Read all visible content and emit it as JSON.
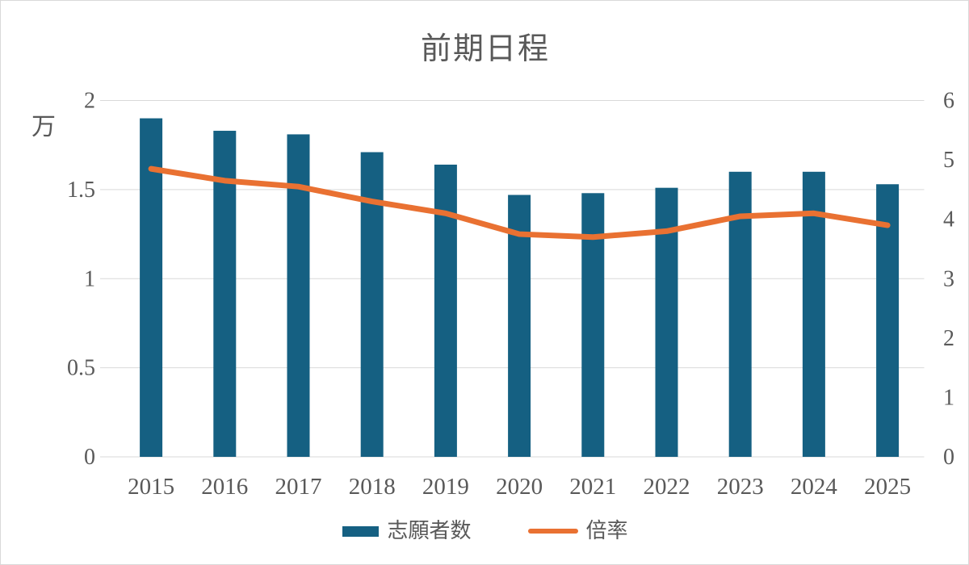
{
  "title": "前期日程",
  "colors": {
    "bar": "#156082",
    "line": "#E97132",
    "text": "#595959",
    "gridline": "#D9D9D9",
    "background": "#FFFFFF",
    "border": "#D9D9D9"
  },
  "legend": {
    "items": [
      {
        "label": "志願者数",
        "swatch": "bar-swatch"
      },
      {
        "label": "倍率",
        "swatch": "line-swatch"
      }
    ]
  },
  "chart_data": {
    "type": "combo",
    "title": "前期日程",
    "categories": [
      "2015",
      "2016",
      "2017",
      "2018",
      "2019",
      "2020",
      "2021",
      "2022",
      "2023",
      "2024",
      "2025"
    ],
    "series": [
      {
        "name": "志願者数",
        "type": "bar",
        "axis": "left",
        "color": "#156082",
        "values": [
          1.9,
          1.83,
          1.81,
          1.71,
          1.64,
          1.47,
          1.48,
          1.51,
          1.6,
          1.6,
          1.53
        ]
      },
      {
        "name": "倍率",
        "type": "line",
        "axis": "right",
        "color": "#E97132",
        "values": [
          4.85,
          4.65,
          4.55,
          4.3,
          4.1,
          3.75,
          3.7,
          3.8,
          4.05,
          4.1,
          3.9
        ]
      }
    ],
    "left_axis": {
      "label": "万",
      "min": 0,
      "max": 2,
      "step": 0.5,
      "ticks": [
        0,
        0.5,
        1,
        1.5,
        2
      ]
    },
    "right_axis": {
      "min": 0,
      "max": 6,
      "step": 1,
      "ticks": [
        0,
        1,
        2,
        3,
        4,
        5,
        6
      ]
    },
    "grid": true,
    "legend_position": "bottom"
  }
}
